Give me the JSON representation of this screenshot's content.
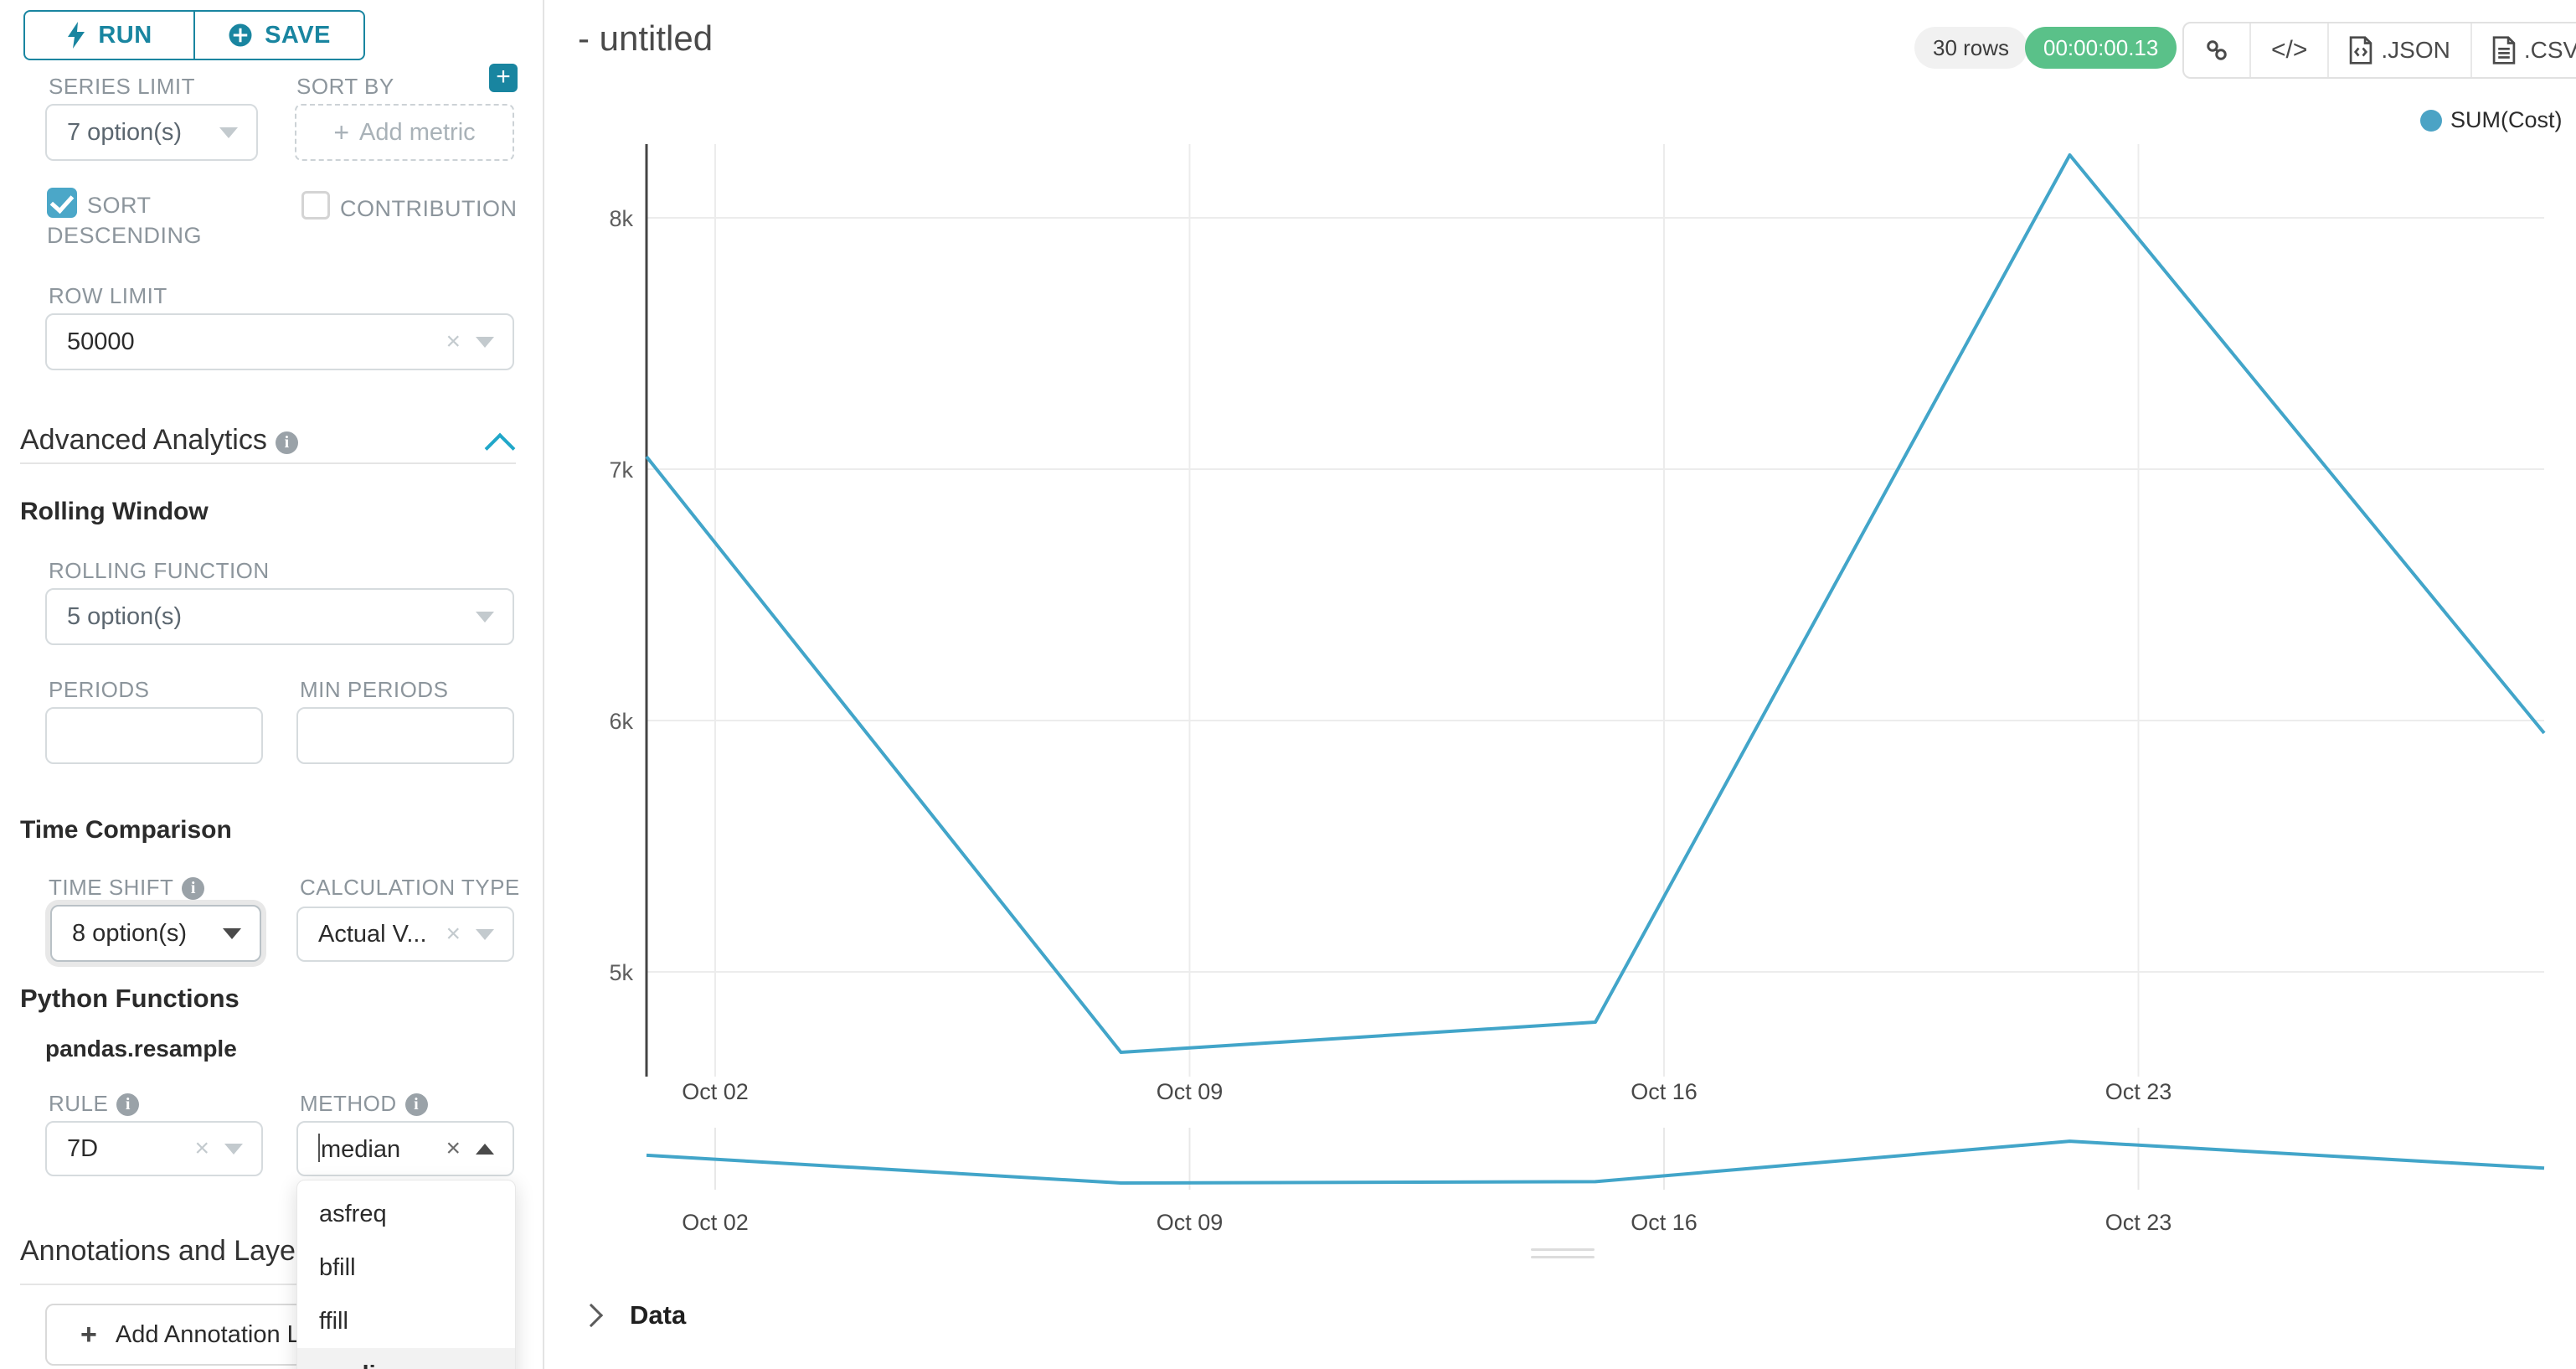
{
  "controls": {
    "run_label": "RUN",
    "save_label": "SAVE",
    "series_limit": {
      "label": "SERIES LIMIT",
      "value": "7 option(s)"
    },
    "sort_by": {
      "label": "SORT BY",
      "placeholder": "Add metric"
    },
    "sort_descending": {
      "label": "SORT DESCENDING",
      "checked": true
    },
    "contribution": {
      "label": "CONTRIBUTION",
      "checked": false
    },
    "row_limit": {
      "label": "ROW LIMIT",
      "value": "50000"
    },
    "advanced_analytics": {
      "title": "Advanced Analytics"
    },
    "rolling_window": {
      "title": "Rolling Window",
      "rolling_function": {
        "label": "ROLLING FUNCTION",
        "value": "5 option(s)"
      },
      "periods_label": "PERIODS",
      "min_periods_label": "MIN PERIODS"
    },
    "time_comparison": {
      "title": "Time Comparison",
      "time_shift": {
        "label": "TIME SHIFT",
        "value": "8 option(s)"
      },
      "calculation_type": {
        "label": "CALCULATION TYPE",
        "value": "Actual V..."
      }
    },
    "python_functions": {
      "title": "Python Functions",
      "subtitle": "pandas.resample",
      "rule": {
        "label": "RULE",
        "value": "7D"
      },
      "method": {
        "label": "METHOD",
        "value": "median",
        "options": [
          "asfreq",
          "bfill",
          "ffill",
          "median"
        ],
        "selected": "median"
      }
    },
    "annotations": {
      "title": "Annotations and Layers",
      "add_button": "Add Annotation Layer"
    }
  },
  "header": {
    "title": "- untitled",
    "rows_badge": "30 rows",
    "timer": "00:00:00.13",
    "json_label": ".JSON",
    "csv_label": ".CSV",
    "code_glyph": "</>"
  },
  "data_panel": {
    "label": "Data"
  },
  "chart_data": {
    "type": "line",
    "title": "- untitled",
    "legend": [
      {
        "name": "SUM(Cost)",
        "color": "#4BA3C5"
      }
    ],
    "legend_position": "top-right",
    "grid": true,
    "x": [
      "Oct 01",
      "Oct 08",
      "Oct 15",
      "Oct 22",
      "Oct 29"
    ],
    "series": [
      {
        "name": "SUM(Cost)",
        "values": [
          7050,
          4680,
          4800,
          8250,
          5950
        ]
      }
    ],
    "line_color": "#42A5C9",
    "x_axis_labels": [
      "Oct 02",
      "Oct 09",
      "Oct 16",
      "Oct 23"
    ],
    "y_ticks": {
      "values": [
        5000,
        6000,
        7000,
        8000
      ],
      "labels": [
        "5k",
        "6k",
        "7k",
        "8k"
      ]
    },
    "ylim": [
      4580,
      8300
    ],
    "mini_chart": {
      "note": "zoom preview strip repeats the same series",
      "x_axis_labels": [
        "Oct 02",
        "Oct 09",
        "Oct 16",
        "Oct 23"
      ]
    }
  }
}
